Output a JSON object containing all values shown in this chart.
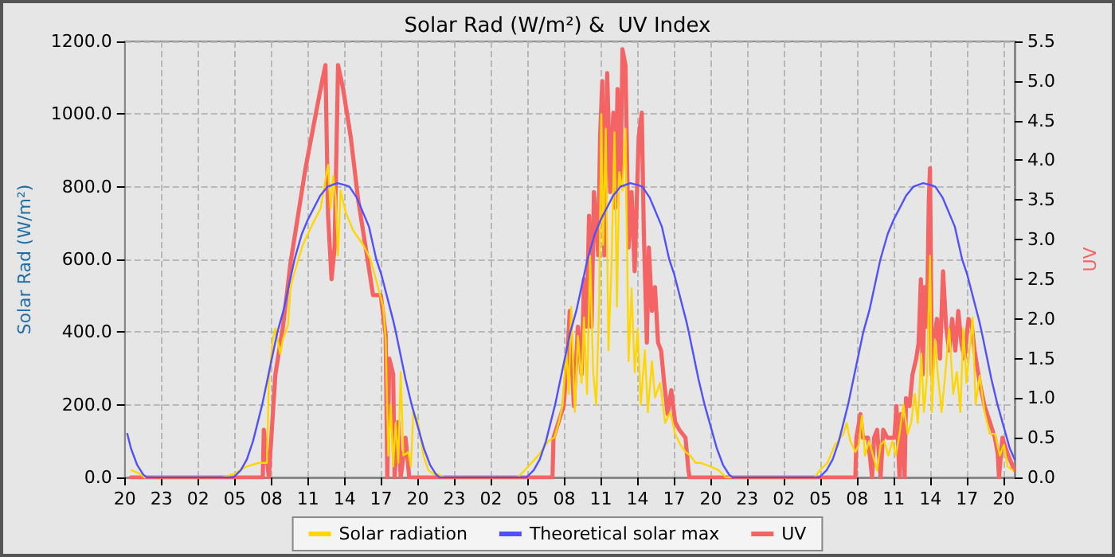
{
  "chart_data": {
    "type": "line",
    "title": "Solar Rad (W/m²) &  UV Index",
    "ylabel": "Solar Rad (W/m²)",
    "y2label": "UV",
    "xlim": [
      "--01-01T20:00",
      "--01-04T20:54"
    ],
    "xticks": [
      {
        "value": "--01-01T20:00",
        "label": "20"
      },
      {
        "value": "--01-01T23:00",
        "label": "23"
      },
      {
        "value": "--01-02T02:00",
        "label": "02"
      },
      {
        "value": "--01-02T05:00",
        "label": "05"
      },
      {
        "value": "--01-02T08:00",
        "label": "08"
      },
      {
        "value": "--01-02T11:00",
        "label": "11"
      },
      {
        "value": "--01-02T14:00",
        "label": "14"
      },
      {
        "value": "--01-02T17:00",
        "label": "17"
      },
      {
        "value": "--01-02T20:00",
        "label": "20"
      },
      {
        "value": "--01-02T23:00",
        "label": "23"
      },
      {
        "value": "--01-03T02:00",
        "label": "02"
      },
      {
        "value": "--01-03T05:00",
        "label": "05"
      },
      {
        "value": "--01-03T08:00",
        "label": "08"
      },
      {
        "value": "--01-03T11:00",
        "label": "11"
      },
      {
        "value": "--01-03T14:00",
        "label": "14"
      },
      {
        "value": "--01-03T17:00",
        "label": "17"
      },
      {
        "value": "--01-03T20:00",
        "label": "20"
      },
      {
        "value": "--01-03T23:00",
        "label": "23"
      },
      {
        "value": "--01-04T02:00",
        "label": "02"
      },
      {
        "value": "--01-04T05:00",
        "label": "05"
      },
      {
        "value": "--01-04T08:00",
        "label": "08"
      },
      {
        "value": "--01-04T11:00",
        "label": "11"
      },
      {
        "value": "--01-04T14:00",
        "label": "14"
      },
      {
        "value": "--01-04T17:00",
        "label": "17"
      },
      {
        "value": "--01-04T20:00",
        "label": "20"
      }
    ],
    "ylim": [
      0,
      1200
    ],
    "yticks": [
      {
        "value": 0,
        "label": "0.0"
      },
      {
        "value": 200,
        "label": "200.0"
      },
      {
        "value": 400,
        "label": "400.0"
      },
      {
        "value": 600,
        "label": "600.0"
      },
      {
        "value": 800,
        "label": "800.0"
      },
      {
        "value": 1000,
        "label": "1000.0"
      },
      {
        "value": 1200,
        "label": "1200.0"
      }
    ],
    "y2lim": [
      0,
      5.5
    ],
    "y2ticks": [
      {
        "value": 0,
        "label": "0.0"
      },
      {
        "value": 0.5,
        "label": "0.5"
      },
      {
        "value": 1,
        "label": "1.0"
      },
      {
        "value": 1.5,
        "label": "1.5"
      },
      {
        "value": 2,
        "label": "2.0"
      },
      {
        "value": 2.5,
        "label": "2.5"
      },
      {
        "value": 3,
        "label": "3.0"
      },
      {
        "value": 3.5,
        "label": "3.5"
      },
      {
        "value": 4,
        "label": "4.0"
      },
      {
        "value": 4.5,
        "label": "4.5"
      },
      {
        "value": 5,
        "label": "5.0"
      },
      {
        "value": 5.5,
        "label": "5.5"
      }
    ],
    "grid": true,
    "legend": "bottom",
    "marker": "none",
    "line_style": "solid",
    "series": [
      {
        "name": "Solar radiation",
        "color": "#ffd700",
        "x": [
          "--01-01T20:32",
          "--01-01T21:14",
          "--01-01T21:38",
          "--01-02T04:01",
          "--01-02T04:58",
          "--01-02T05:57",
          "--01-02T06:58",
          "--01-02T07:38",
          "--01-02T07:48",
          "--01-02T08:07",
          "--01-02T08:20",
          "--01-02T08:44",
          "--01-02T08:57",
          "--01-02T09:22",
          "--01-02T09:34",
          "--01-02T09:46",
          "--01-02T10:35",
          "--01-02T11:25",
          "--01-02T12:02",
          "--01-02T12:26",
          "--01-02T12:39",
          "--01-02T12:51",
          "--01-02T13:04",
          "--01-02T13:16",
          "--01-02T13:28",
          "--01-02T13:40",
          "--01-02T14:05",
          "--01-02T14:42",
          "--01-02T15:31",
          "--01-02T16:08",
          "--01-02T16:46",
          "--01-02T17:10",
          "--01-02T17:22",
          "--01-02T17:35",
          "--01-02T17:47",
          "--01-02T17:59",
          "--01-02T18:11",
          "--01-02T18:24",
          "--01-02T18:36",
          "--01-02T18:49",
          "--01-02T19:13",
          "--01-02T19:26",
          "--01-02T19:38",
          "--01-02T20:02",
          "--01-02T20:28",
          "--01-02T20:52",
          "--01-02T21:17",
          "--01-02T21:34",
          "--01-02T22:11",
          "--01-03T04:13",
          "--01-03T05:02",
          "--01-03T05:52",
          "--01-03T06:42",
          "--01-03T07:12",
          "--01-03T07:32",
          "--01-03T07:52",
          "--01-03T08:10",
          "--01-03T08:22",
          "--01-03T08:34",
          "--01-03T08:52",
          "--01-03T09:07",
          "--01-03T09:25",
          "--01-03T09:37",
          "--01-03T09:52",
          "--01-03T10:07",
          "--01-03T10:22",
          "--01-03T10:37",
          "--01-03T10:52",
          "--01-03T11:02",
          "--01-03T11:11",
          "--01-03T11:24",
          "--01-03T11:37",
          "--01-03T11:52",
          "--01-03T12:07",
          "--01-03T12:19",
          "--01-03T12:31",
          "--01-03T12:46",
          "--01-03T13:01",
          "--01-03T13:16",
          "--01-03T13:31",
          "--01-03T13:46",
          "--01-03T14:01",
          "--01-03T14:16",
          "--01-03T14:36",
          "--01-03T14:51",
          "--01-03T15:11",
          "--01-03T15:26",
          "--01-03T15:51",
          "--01-03T16:16",
          "--01-03T16:41",
          "--01-03T17:05",
          "--01-03T17:31",
          "--01-03T17:56",
          "--01-03T18:20",
          "--01-03T18:46",
          "--01-03T19:10",
          "--01-03T20:00",
          "--01-03T20:38",
          "--01-03T21:15",
          "--01-04T04:31",
          "--01-04T04:56",
          "--01-04T05:34",
          "--01-04T06:11",
          "--01-04T06:53",
          "--01-04T07:08",
          "--01-04T07:26",
          "--01-04T07:51",
          "--01-04T08:08",
          "--01-04T08:23",
          "--01-04T08:38",
          "--01-04T08:58",
          "--01-04T09:18",
          "--01-04T09:38",
          "--01-04T09:55",
          "--01-04T10:13",
          "--01-04T10:33",
          "--01-04T10:53",
          "--01-04T11:10",
          "--01-04T11:28",
          "--01-04T11:47",
          "--01-04T12:08",
          "--01-04T12:25",
          "--01-04T12:43",
          "--01-04T12:58",
          "--01-04T13:15",
          "--01-04T13:28",
          "--01-04T13:43",
          "--01-04T13:58",
          "--01-04T14:07",
          "--01-04T14:22",
          "--01-04T14:37",
          "--01-04T14:55",
          "--01-04T15:12",
          "--01-04T15:32",
          "--01-04T15:52",
          "--01-04T16:10",
          "--01-04T16:27",
          "--01-04T16:42",
          "--01-04T16:57",
          "--01-04T17:12",
          "--01-04T17:27",
          "--01-04T17:42",
          "--01-04T18:02",
          "--01-04T18:26",
          "--01-04T18:52",
          "--01-04T19:17",
          "--01-04T19:41",
          "--01-04T20:01",
          "--01-04T20:19",
          "--01-04T20:44"
        ],
        "values": [
          20,
          10,
          0,
          0,
          10,
          30,
          40,
          40,
          270,
          380,
          410,
          340,
          380,
          420,
          520,
          550,
          640,
          700,
          740,
          820,
          860,
          740,
          830,
          770,
          610,
          790,
          730,
          680,
          640,
          600,
          520,
          470,
          380,
          60,
          200,
          30,
          150,
          40,
          290,
          60,
          70,
          30,
          180,
          150,
          60,
          20,
          10,
          10,
          0,
          0,
          30,
          60,
          100,
          110,
          150,
          200,
          350,
          230,
          470,
          180,
          390,
          260,
          440,
          230,
          610,
          290,
          200,
          490,
          1000,
          640,
          960,
          350,
          580,
          950,
          470,
          840,
          790,
          960,
          320,
          520,
          290,
          410,
          200,
          350,
          180,
          320,
          220,
          260,
          150,
          180,
          120,
          90,
          70,
          60,
          40,
          40,
          30,
          20,
          0,
          0,
          20,
          40,
          90,
          120,
          150,
          100,
          70,
          90,
          170,
          60,
          100,
          60,
          20,
          90,
          100,
          60,
          100,
          60,
          120,
          200,
          120,
          150,
          230,
          150,
          340,
          180,
          280,
          610,
          180,
          380,
          280,
          180,
          280,
          410,
          230,
          290,
          180,
          410,
          260,
          350,
          440,
          200,
          280,
          180,
          120,
          120,
          60,
          90,
          30,
          20
        ]
      },
      {
        "name": "Theoretical solar max",
        "color": "#5050ff",
        "x": [
          "--01-01T20:12",
          "--01-01T20:30",
          "--01-01T21:00",
          "--01-01T21:30",
          "--01-01T21:48",
          "--01-02T04:54",
          "--01-02T05:30",
          "--01-02T06:00",
          "--01-02T06:30",
          "--01-02T07:15",
          "--01-02T08:00",
          "--01-02T08:30",
          "--01-02T09:00",
          "--01-02T09:54",
          "--01-02T10:30",
          "--01-02T11:00",
          "--01-02T12:00",
          "--01-02T12:36",
          "--01-02T13:24",
          "--01-02T14:00",
          "--01-02T14:24",
          "--01-02T15:00",
          "--01-02T16:00",
          "--01-02T16:36",
          "--01-02T17:00",
          "--01-02T18:00",
          "--01-02T18:12",
          "--01-02T19:00",
          "--01-02T19:30",
          "--01-02T20:00",
          "--01-02T20:30",
          "--01-02T21:00",
          "--01-02T21:30",
          "--01-02T21:48",
          "--01-03T04:54",
          "--01-03T05:30",
          "--01-03T06:00",
          "--01-03T06:30",
          "--01-03T07:15",
          "--01-03T08:00",
          "--01-03T08:30",
          "--01-03T09:00",
          "--01-03T09:54",
          "--01-03T10:30",
          "--01-03T11:00",
          "--01-03T12:00",
          "--01-03T12:36",
          "--01-03T13:24",
          "--01-03T14:00",
          "--01-03T14:24",
          "--01-03T15:00",
          "--01-03T16:00",
          "--01-03T16:36",
          "--01-03T17:00",
          "--01-03T18:00",
          "--01-03T18:12",
          "--01-03T19:00",
          "--01-03T19:30",
          "--01-03T20:00",
          "--01-03T20:30",
          "--01-03T21:00",
          "--01-03T21:30",
          "--01-03T21:48",
          "--01-04T04:54",
          "--01-04T05:30",
          "--01-04T06:00",
          "--01-04T06:30",
          "--01-04T07:15",
          "--01-04T08:00",
          "--01-04T08:30",
          "--01-04T09:00",
          "--01-04T09:54",
          "--01-04T10:30",
          "--01-04T11:00",
          "--01-04T12:00",
          "--01-04T12:36",
          "--01-04T13:24",
          "--01-04T14:00",
          "--01-04T14:24",
          "--01-04T15:00",
          "--01-04T16:00",
          "--01-04T16:36",
          "--01-04T17:00",
          "--01-04T18:00",
          "--01-04T18:12",
          "--01-04T19:00",
          "--01-04T19:30",
          "--01-04T20:00",
          "--01-04T20:30",
          "--01-04T20:54"
        ],
        "values": [
          120,
          80,
          35,
          8,
          0,
          0,
          20,
          50,
          100,
          200,
          320,
          400,
          460,
          600,
          670,
          710,
          775,
          800,
          810,
          805,
          800,
          770,
          690,
          600,
          560,
          430,
          400,
          270,
          200,
          140,
          80,
          35,
          8,
          0,
          0,
          20,
          50,
          100,
          200,
          320,
          400,
          460,
          600,
          670,
          710,
          775,
          800,
          810,
          805,
          800,
          770,
          690,
          600,
          560,
          430,
          400,
          270,
          200,
          140,
          80,
          35,
          8,
          0,
          0,
          20,
          50,
          100,
          200,
          320,
          400,
          460,
          600,
          670,
          710,
          775,
          800,
          810,
          805,
          800,
          770,
          690,
          600,
          560,
          430,
          400,
          270,
          200,
          140,
          80,
          50
        ]
      },
      {
        "name": "UV",
        "color": "#f46464",
        "axis": "y2",
        "x": [
          "--01-01T20:30",
          "--01-02T07:18",
          "--01-02T07:23",
          "--01-02T07:48",
          "--01-02T07:55",
          "--01-02T08:20",
          "--01-02T08:57",
          "--01-02T09:34",
          "--01-02T10:11",
          "--01-02T10:48",
          "--01-02T11:25",
          "--01-02T12:02",
          "--01-02T12:26",
          "--01-02T12:39",
          "--01-02T12:56",
          "--01-02T13:11",
          "--01-02T13:28",
          "--01-02T13:53",
          "--01-02T14:30",
          "--01-02T15:07",
          "--01-02T15:56",
          "--01-02T16:20",
          "--01-02T16:58",
          "--01-02T17:22",
          "--01-02T17:30",
          "--01-02T17:40",
          "--01-02T17:59",
          "--01-02T18:06",
          "--01-02T18:24",
          "--01-02T18:36",
          "--01-02T19:00",
          "--01-02T19:18",
          "--01-03T07:02",
          "--01-03T07:07",
          "--01-03T07:32",
          "--01-03T07:57",
          "--01-03T08:17",
          "--01-03T08:27",
          "--01-03T08:47",
          "--01-03T09:07",
          "--01-03T09:25",
          "--01-03T09:37",
          "--01-03T09:49",
          "--01-03T10:02",
          "--01-03T10:14",
          "--01-03T10:26",
          "--01-03T10:47",
          "--01-03T10:56",
          "--01-03T11:07",
          "--01-03T11:17",
          "--01-03T11:31",
          "--01-03T11:46",
          "--01-03T12:01",
          "--01-03T12:11",
          "--01-03T12:22",
          "--01-03T12:37",
          "--01-03T12:46",
          "--01-03T13:01",
          "--01-03T13:16",
          "--01-03T13:31",
          "--01-03T13:46",
          "--01-03T14:06",
          "--01-03T14:21",
          "--01-03T14:31",
          "--01-03T14:46",
          "--01-03T14:56",
          "--01-03T15:11",
          "--01-03T15:26",
          "--01-03T15:41",
          "--01-03T15:56",
          "--01-03T16:11",
          "--01-03T16:28",
          "--01-03T16:46",
          "--01-03T17:05",
          "--01-03T17:26",
          "--01-03T17:56",
          "--01-03T18:10",
          "--01-03T18:16",
          "--01-04T07:51",
          "--01-04T07:56",
          "--01-04T08:16",
          "--01-04T08:28",
          "--01-04T08:53",
          "--01-04T09:13",
          "--01-04T09:23",
          "--01-04T09:38",
          "--01-04T09:55",
          "--01-04T10:08",
          "--01-04T10:28",
          "--01-04T10:45",
          "--01-04T11:03",
          "--01-04T11:13",
          "--01-04T11:28",
          "--01-04T11:35",
          "--01-04T11:53",
          "--01-04T12:00",
          "--01-04T12:17",
          "--01-04T12:32",
          "--01-04T12:50",
          "--01-04T13:02",
          "--01-04T13:13",
          "--01-04T13:22",
          "--01-04T13:32",
          "--01-04T13:43",
          "--01-04T13:52",
          "--01-04T13:58",
          "--01-04T14:07",
          "--01-04T14:17",
          "--01-04T14:32",
          "--01-04T14:47",
          "--01-04T15:02",
          "--01-04T15:17",
          "--01-04T15:32",
          "--01-04T15:47",
          "--01-04T16:02",
          "--01-04T16:17",
          "--01-04T16:32",
          "--01-04T16:47",
          "--01-04T17:07",
          "--01-04T17:24",
          "--01-04T17:37",
          "--01-04T18:02",
          "--01-04T18:26",
          "--01-04T18:52",
          "--01-04T19:17",
          "--01-04T19:31",
          "--01-04T19:37",
          "--01-04T19:54",
          "--01-04T20:19",
          "--01-04T20:51"
        ],
        "values": [
          0,
          0,
          0.6,
          0,
          0.3,
          1.3,
          1.9,
          2.7,
          3.3,
          3.9,
          4.4,
          4.9,
          5.2,
          3.3,
          2.5,
          2.9,
          5.2,
          4.9,
          4.3,
          3.5,
          2.7,
          2.3,
          2.3,
          1.8,
          0,
          1.5,
          1.3,
          0,
          0.7,
          0,
          0.5,
          0,
          0,
          0.5,
          0.7,
          0.9,
          1.6,
          2.1,
          0.9,
          1.9,
          1.3,
          2.5,
          1.9,
          3.3,
          1.9,
          3.6,
          2.8,
          4.3,
          5.0,
          2.8,
          5.1,
          3.6,
          4.6,
          3.4,
          4.9,
          3.7,
          5.4,
          5.2,
          2.9,
          3.6,
          2.6,
          4.3,
          4.6,
          3.1,
          1.7,
          2.9,
          2.1,
          2.4,
          1.7,
          1.6,
          1.2,
          0.8,
          1.1,
          0.7,
          0.6,
          0.5,
          0.1,
          0,
          0,
          0.5,
          0.8,
          0.5,
          0.5,
          0,
          0.5,
          0.6,
          0,
          0.6,
          0.5,
          0.5,
          0.5,
          0.9,
          0,
          0.8,
          0,
          1.0,
          0.9,
          1.3,
          1.5,
          1.7,
          2.5,
          1.3,
          2.4,
          1.9,
          3.5,
          3.9,
          1.3,
          1.7,
          2.0,
          1.5,
          2.6,
          1.9,
          1.6,
          2.0,
          1.6,
          2.1,
          1.7,
          1.5,
          2.0,
          1.9,
          1.6,
          1.2,
          0.9,
          0.7,
          0.5,
          0.3,
          0,
          0.5,
          0.3,
          0.1
        ]
      }
    ]
  }
}
